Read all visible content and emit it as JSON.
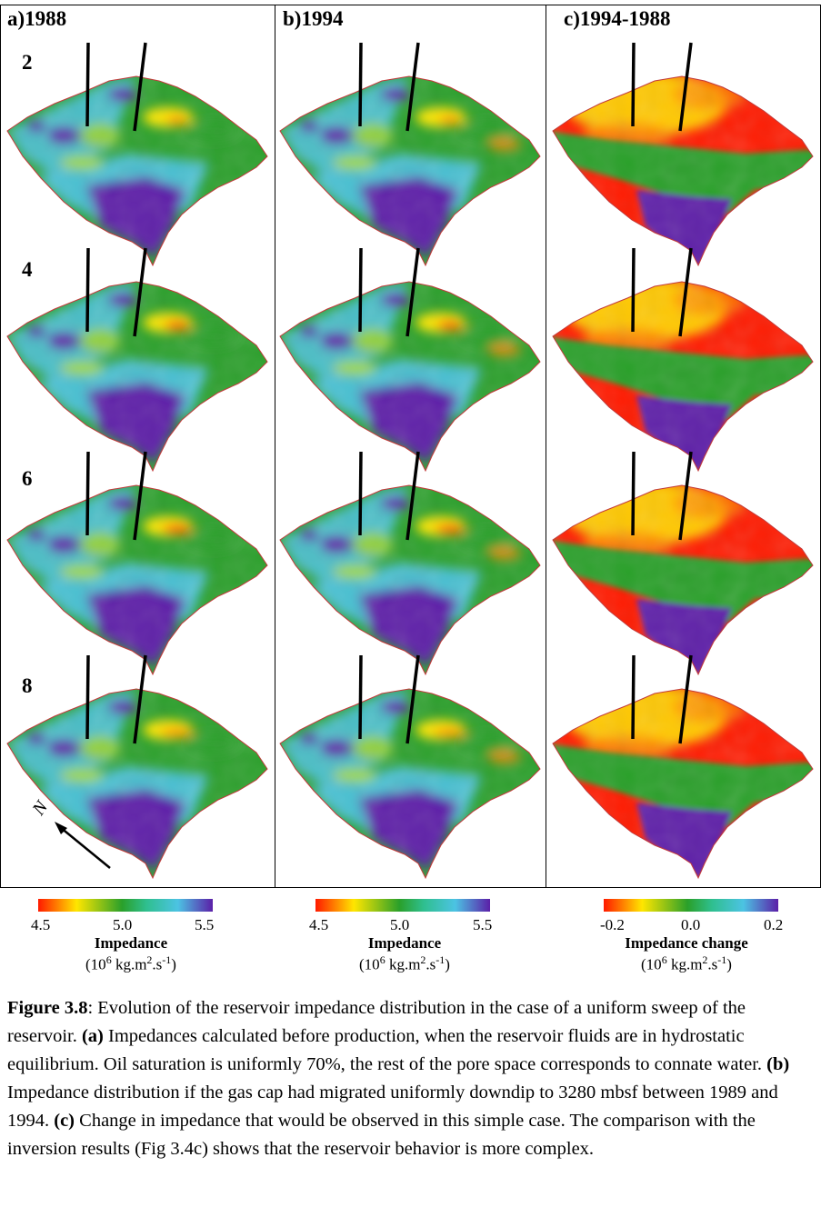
{
  "columns": [
    {
      "title": "a)1988"
    },
    {
      "title": "b)1994"
    },
    {
      "title": "c)1994-1988"
    }
  ],
  "rows": [
    "2",
    "4",
    "6",
    "8"
  ],
  "north_label": "N",
  "colorbars": [
    {
      "min": "4.5",
      "mid": "5.0",
      "max": "5.5",
      "title": "Impedance",
      "unit": "(10<sup>6</sup> kg.m<sup>2</sup>.s<sup>-1</sup>)",
      "unit_text": "(106 kg.m2.s-1)",
      "stops": [
        "#ff1a00",
        "#ffe600",
        "#2aa02a",
        "#2fbf8f",
        "#4cc3e3",
        "#5b1fa8"
      ]
    },
    {
      "min": "4.5",
      "mid": "5.0",
      "max": "5.5",
      "title": "Impedance",
      "unit_text": "(106 kg.m2.s-1)",
      "stops": [
        "#ff1a00",
        "#ffe600",
        "#2aa02a",
        "#2fbf8f",
        "#4cc3e3",
        "#5b1fa8"
      ]
    },
    {
      "min": "-0.2",
      "mid": "0.0",
      "max": "0.2",
      "title": "Impedance change",
      "unit_text": "(106 kg.m2.s-1)",
      "stops": [
        "#ff1a00",
        "#ffe600",
        "#2aa02a",
        "#2fbf8f",
        "#4cc3e3",
        "#5b1fa8"
      ]
    }
  ],
  "caption": {
    "label": "Figure 3.8",
    "p1": ": Evolution of the reservoir impedance distribution in the case of a uniform sweep of the reservoir. ",
    "a_label": "(a)",
    "p2": " Impedances calculated before production, when the reservoir fluids are in hydrostatic equilibrium. Oil saturation is uniformly 70%, the rest of the pore space corresponds to connate water. ",
    "b_label": "(b)",
    "p3": " Impedance distribution if the gas cap had migrated uniformly downdip to 3280 mbsf between 1989 and 1994. ",
    "c_label": "(c)",
    "p4": " Change in impedance that would be observed in this simple case. The comparison with the inversion results (Fig 3.4c) shows that the reservoir behavior is more complex."
  },
  "colors": {
    "red": "#ff1a00",
    "orange": "#ff8a00",
    "yellow": "#ffe600",
    "green": "#2aa02a",
    "cyan": "#4cc3e3",
    "purple": "#5b1fa8"
  }
}
